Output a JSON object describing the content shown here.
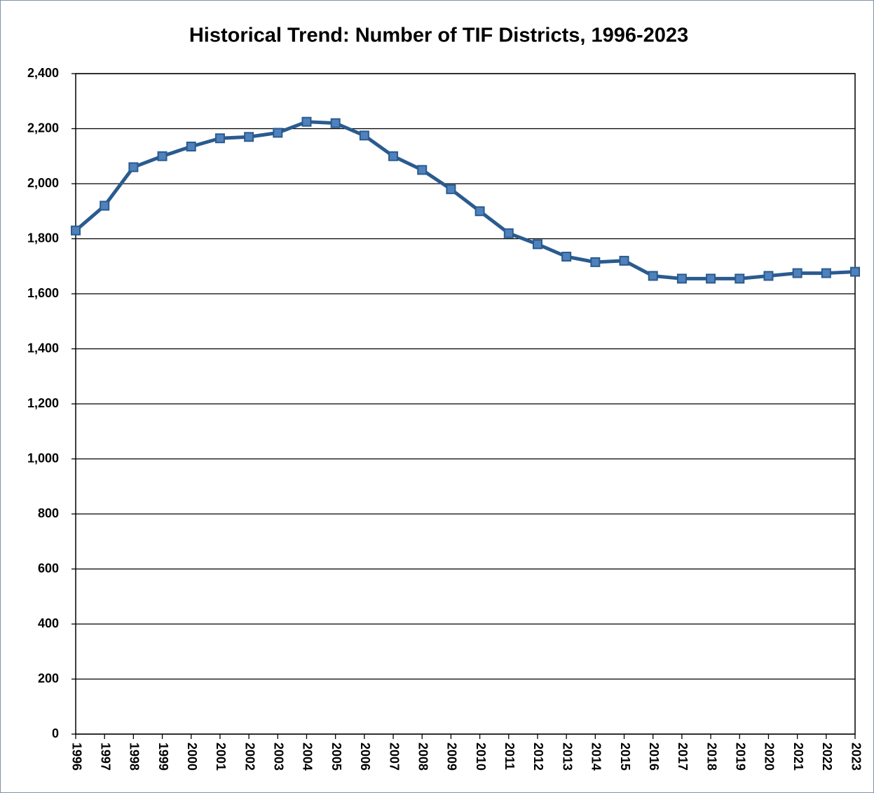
{
  "chart_data": {
    "type": "line",
    "title": "Historical Trend: Number of TIF Districts, 1996-2023",
    "categories": [
      "1996",
      "1997",
      "1998",
      "1999",
      "2000",
      "2001",
      "2002",
      "2003",
      "2004",
      "2005",
      "2006",
      "2007",
      "2008",
      "2009",
      "2010",
      "2011",
      "2012",
      "2013",
      "2014",
      "2015",
      "2016",
      "2017",
      "2018",
      "2019",
      "2020",
      "2021",
      "2022",
      "2023"
    ],
    "values": [
      1830,
      1920,
      2060,
      2100,
      2135,
      2165,
      2170,
      2185,
      2225,
      2220,
      2175,
      2100,
      2050,
      1980,
      1900,
      1820,
      1780,
      1735,
      1715,
      1720,
      1665,
      1655,
      1655,
      1655,
      1665,
      1675,
      1675,
      1680
    ],
    "color": "#2a5b8f",
    "marker_color": "#4f81bd",
    "ylim": [
      0,
      2400
    ],
    "yticks": [
      0,
      200,
      400,
      600,
      800,
      {
        "value": 1000,
        "label": "1,000"
      },
      {
        "value": 1200,
        "label": "1,200"
      },
      {
        "value": 1400,
        "label": "1,400"
      },
      {
        "value": 1600,
        "label": "1,600"
      },
      {
        "value": 1800,
        "label": "1,800"
      },
      {
        "value": 2000,
        "label": "2,000"
      },
      {
        "value": 2200,
        "label": "2,200"
      },
      {
        "value": 2400,
        "label": "2,400"
      }
    ],
    "grid": true
  }
}
